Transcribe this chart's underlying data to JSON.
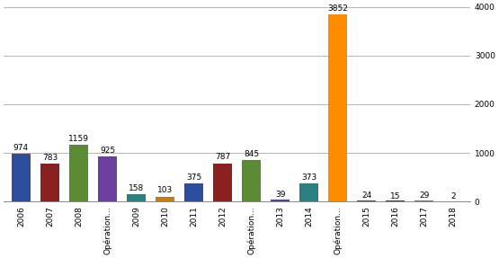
{
  "categories": [
    "2006",
    "2007",
    "2008",
    "Opération...",
    "2009",
    "2010",
    "2011",
    "2012",
    "Opération...",
    "2013",
    "2014",
    "Opération...",
    "2015",
    "2016",
    "2017",
    "2018"
  ],
  "values": [
    974,
    783,
    1159,
    925,
    158,
    103,
    375,
    787,
    845,
    39,
    373,
    3852,
    24,
    15,
    29,
    2
  ],
  "colors": [
    "#2e4d9e",
    "#8b2020",
    "#5a8a32",
    "#6b3fa0",
    "#2a8080",
    "#cc7a00",
    "#2e4d9e",
    "#8b2020",
    "#5a8a32",
    "#5a3fa0",
    "#2a8080",
    "#ff8c00",
    "#2e4d9e",
    "#8b2020",
    "#5a8a32",
    "#6b3fa0"
  ],
  "ylim": [
    0,
    4000
  ],
  "yticks": [
    0,
    1000,
    2000,
    3000,
    4000
  ],
  "bar_width": 0.65,
  "figsize": [
    5.55,
    2.87
  ],
  "dpi": 100,
  "bg_color": "#ffffff",
  "grid_color": "#aaaaaa",
  "tick_fontsize": 6.5,
  "annotation_fontsize": 6.5
}
